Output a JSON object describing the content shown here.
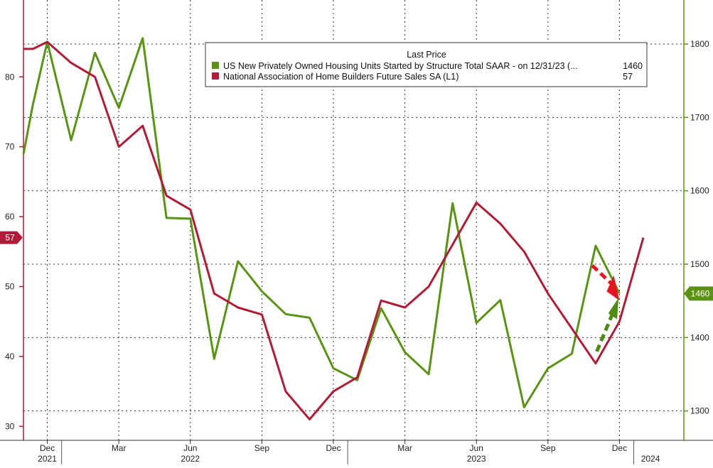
{
  "chart_data": {
    "type": "line",
    "legend": {
      "header": "Last Price",
      "placement": "top-center",
      "entries": [
        {
          "label": "US New Privately Owned Housing Units Started by Structure Total SAAR -  on 12/31/23  (...",
          "value": "1460",
          "color": "#5a9216"
        },
        {
          "label": "National Association of Home Builders Future Sales SA  (L1)",
          "value": "57",
          "color": "#b01c37"
        }
      ]
    },
    "x_axis": {
      "month_labels": [
        "Dec",
        "Mar",
        "Jun",
        "Sep",
        "Dec",
        "Mar",
        "Jun",
        "Sep",
        "Dec"
      ],
      "month_label_index": [
        1,
        4,
        7,
        10,
        13,
        16,
        19,
        22,
        25
      ],
      "year_labels": [
        "2021",
        "2022",
        "2023",
        "2024"
      ],
      "year_label_index": [
        1,
        7,
        19,
        26.3
      ],
      "year_dividers": [
        1.6,
        13.6,
        25.6
      ],
      "range": [
        0,
        27.7
      ]
    },
    "y_left": {
      "range": [
        28,
        91
      ],
      "ticks": [
        "30",
        "40",
        "50",
        "60",
        "70",
        "80"
      ],
      "tick_values": [
        30,
        40,
        50,
        60,
        70,
        80
      ],
      "last_value_label": "57",
      "last_value": 57,
      "color": "#b01c37"
    },
    "y_right": {
      "range": [
        1260,
        1860
      ],
      "ticks": [
        "1300",
        "1400",
        "1500",
        "1600",
        "1700",
        "1800"
      ],
      "tick_values": [
        1300,
        1400,
        1500,
        1600,
        1700,
        1800
      ],
      "last_value_label": "1460",
      "last_value": 1460,
      "color": "#5a9216"
    },
    "grid": true,
    "series": [
      {
        "name": "US New Privately Owned Housing Units Started by Structure Total SAAR",
        "axis": "right",
        "color": "#5a9216",
        "x": [
          0,
          0.4,
          1,
          2,
          3,
          4,
          5,
          6,
          7,
          8,
          9,
          10,
          11,
          12,
          13,
          14,
          15,
          16,
          17,
          18,
          19,
          20,
          21,
          22,
          23,
          24,
          25
        ],
        "values": [
          1650,
          1718,
          1803,
          1669,
          1788,
          1713,
          1808,
          1563,
          1562,
          1371,
          1504,
          1463,
          1432,
          1427,
          1358,
          1342,
          1440,
          1380,
          1350,
          1583,
          1420,
          1451,
          1305,
          1358,
          1378,
          1525,
          1460
        ]
      },
      {
        "name": "National Association of Home Builders Future Sales SA",
        "axis": "left",
        "color": "#b01c37",
        "x": [
          0,
          0.4,
          1,
          2,
          3,
          4,
          5,
          6,
          7,
          8,
          9,
          10,
          11,
          12,
          13,
          14,
          15,
          16,
          17,
          18,
          19,
          20,
          21,
          22,
          23,
          24,
          25,
          26
        ],
        "values": [
          84,
          84,
          85,
          82,
          80,
          70,
          73,
          63,
          61,
          49,
          47,
          46,
          35,
          31,
          35,
          37,
          48,
          47,
          50,
          56,
          62,
          59,
          55,
          49,
          44,
          39,
          45,
          57
        ]
      }
    ],
    "annotations": [
      {
        "type": "dashed-arrow",
        "color": "#e8141e",
        "direction": "down-right"
      },
      {
        "type": "dashed-arrow",
        "color": "#4f8a12",
        "direction": "up-right"
      }
    ]
  }
}
